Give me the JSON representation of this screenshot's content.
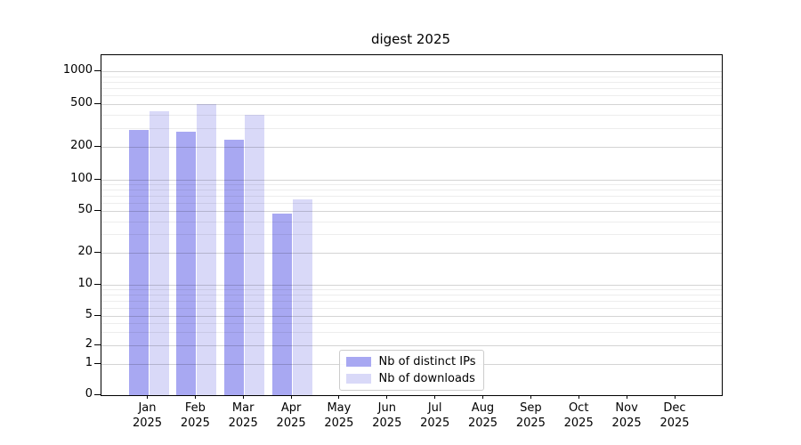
{
  "chart_data": {
    "type": "bar",
    "title": "digest 2025",
    "year": "2025",
    "categories": [
      "Jan",
      "Feb",
      "Mar",
      "Apr",
      "May",
      "Jun",
      "Jul",
      "Aug",
      "Sep",
      "Oct",
      "Nov",
      "Dec"
    ],
    "series": [
      {
        "name": "Nb of distinct IPs",
        "color": "#a8a8f2",
        "values": [
          285,
          275,
          235,
          47,
          null,
          null,
          null,
          null,
          null,
          null,
          null,
          null
        ]
      },
      {
        "name": "Nb of downloads",
        "color": "#d9d9f8",
        "values": [
          430,
          500,
          400,
          65,
          null,
          null,
          null,
          null,
          null,
          null,
          null,
          null
        ]
      }
    ],
    "xlabel": "",
    "ylabel": "",
    "yscale": "symlog",
    "yticks": [
      0,
      1,
      2,
      5,
      10,
      20,
      50,
      100,
      200,
      500,
      1000
    ],
    "ylim": [
      0,
      1400
    ],
    "grid": true,
    "grid_minor": true,
    "legend_position": "lower center inside",
    "colors": {
      "grid_major": "#d4d4d4",
      "grid_minor": "#ededed",
      "spine": "#000000",
      "background": "#ffffff"
    }
  }
}
